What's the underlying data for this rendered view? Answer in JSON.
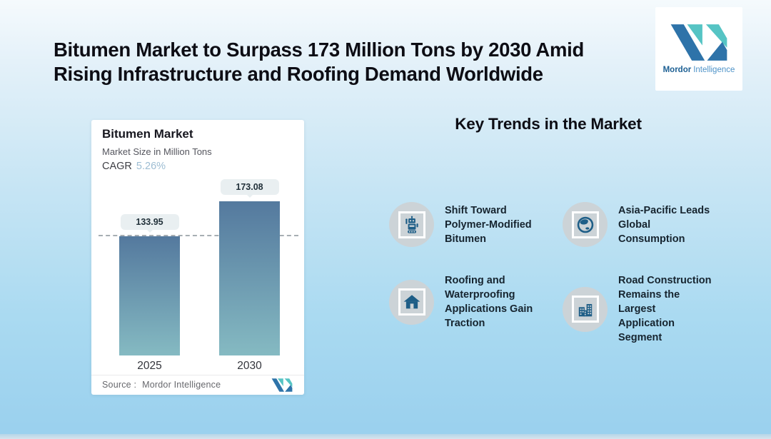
{
  "page": {
    "title_lines": [
      "Bitumen Market to Surpass 173 Million Tons by 2030 Amid",
      "Rising Infrastructure and Roofing Demand Worldwide"
    ]
  },
  "brand": {
    "logo_text_bold": "Mordor",
    "logo_text_light": "Intelligence"
  },
  "chart_card": {
    "title": "Bitumen Market",
    "subtitle": "Market Size in Million Tons",
    "cagr_label": "CAGR",
    "cagr_value": "5.26%",
    "source_label": "Source :",
    "source_value": "Mordor Intelligence"
  },
  "chart_data": {
    "type": "bar",
    "title": "Bitumen Market",
    "subtitle": "Market Size in Million Tons",
    "unit": "Million Tons",
    "categories": [
      "2025",
      "2030"
    ],
    "values": [
      133.95,
      173.08
    ],
    "cagr_percent": 5.26,
    "reference_line_value": 133.95,
    "ylim": [
      0,
      173.08
    ],
    "grid": false,
    "legend": false,
    "source": "Mordor Intelligence"
  },
  "trends": {
    "heading": "Key Trends in the Market",
    "items": [
      {
        "icon": "robot-icon",
        "text": "Shift Toward Polymer-Modified Bitumen",
        "lines": [
          "Shift Toward",
          "Polymer-Modified",
          "Bitumen"
        ]
      },
      {
        "icon": "globe-icon",
        "text": "Asia-Pacific Leads Global Consumption",
        "lines": [
          "Asia-Pacific Leads",
          "Global",
          "Consumption"
        ]
      },
      {
        "icon": "house-icon",
        "text": "Roofing and Waterproofing Applications Gain Traction",
        "lines": [
          "Roofing and",
          "Waterproofing",
          "Applications Gain",
          "Traction"
        ]
      },
      {
        "icon": "buildings-icon",
        "text": "Road Construction Remains the Largest Application Segment",
        "lines": [
          "Road Construction",
          "Remains the",
          "Largest Application",
          "Segment"
        ]
      }
    ]
  },
  "colors": {
    "brand_dark_blue": "#2E73A9",
    "brand_teal": "#56C4C4",
    "icon_blue": "#1E5E87",
    "bar_top": "#54799E",
    "bar_bottom": "#85BAC2",
    "cagr_value_color": "#9DBDD3",
    "background_top": "#F5FAFD",
    "background_bottom": "#9BD1EE"
  }
}
